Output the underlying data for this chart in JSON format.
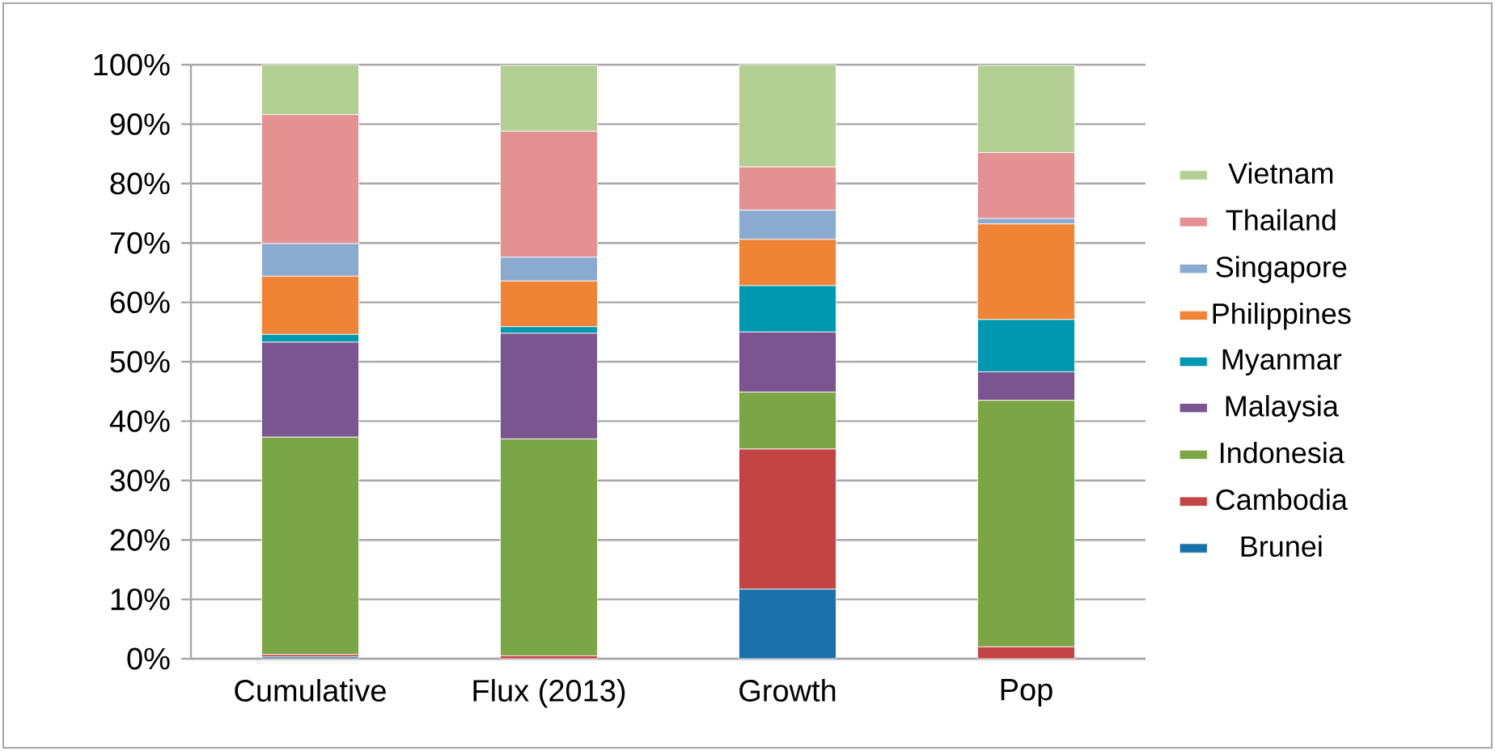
{
  "chart_data": {
    "type": "bar",
    "stacked": true,
    "categories": [
      "Cumulative",
      "Flux (2013)",
      "Growth",
      "Pop"
    ],
    "series": [
      {
        "name": "Brunei",
        "color": "#1b72aa",
        "values": [
          0.3,
          null,
          11.7,
          null
        ]
      },
      {
        "name": "Cambodia",
        "color": "#c34444",
        "values": [
          0.4,
          0.5,
          23.6,
          2.0
        ]
      },
      {
        "name": "Indonesia",
        "color": "#7ca547",
        "values": [
          36.6,
          36.5,
          9.6,
          41.5
        ]
      },
      {
        "name": "Malaysia",
        "color": "#7b558f",
        "values": [
          16.0,
          17.8,
          10.1,
          4.8
        ]
      },
      {
        "name": "Myanmar",
        "color": "#0098b1",
        "values": [
          1.3,
          1.1,
          7.8,
          8.8
        ]
      },
      {
        "name": "Philippines",
        "color": "#f08436",
        "values": [
          9.8,
          7.7,
          7.8,
          16.1
        ]
      },
      {
        "name": "Singapore",
        "color": "#8aaad0",
        "values": [
          5.5,
          4.0,
          4.9,
          0.9
        ]
      },
      {
        "name": "Thailand",
        "color": "#e39192",
        "values": [
          21.7,
          21.2,
          7.3,
          11.1
        ]
      },
      {
        "name": "Vietnam",
        "color": "#b3cf93",
        "values": [
          8.4,
          11.1,
          17.2,
          14.7
        ]
      }
    ],
    "ylim": [
      0,
      100
    ],
    "yticks": [
      {
        "value": 0,
        "label": "0%"
      },
      {
        "value": 10,
        "label": "10%"
      },
      {
        "value": 20,
        "label": "20%"
      },
      {
        "value": 30,
        "label": "30%"
      },
      {
        "value": 40,
        "label": "40%"
      },
      {
        "value": 50,
        "label": "50%"
      },
      {
        "value": 60,
        "label": "60%"
      },
      {
        "value": 70,
        "label": "70%"
      },
      {
        "value": 80,
        "label": "80%"
      },
      {
        "value": 90,
        "label": "90%"
      },
      {
        "value": 100,
        "label": "100%"
      }
    ],
    "grid": "y",
    "legend": "right"
  }
}
